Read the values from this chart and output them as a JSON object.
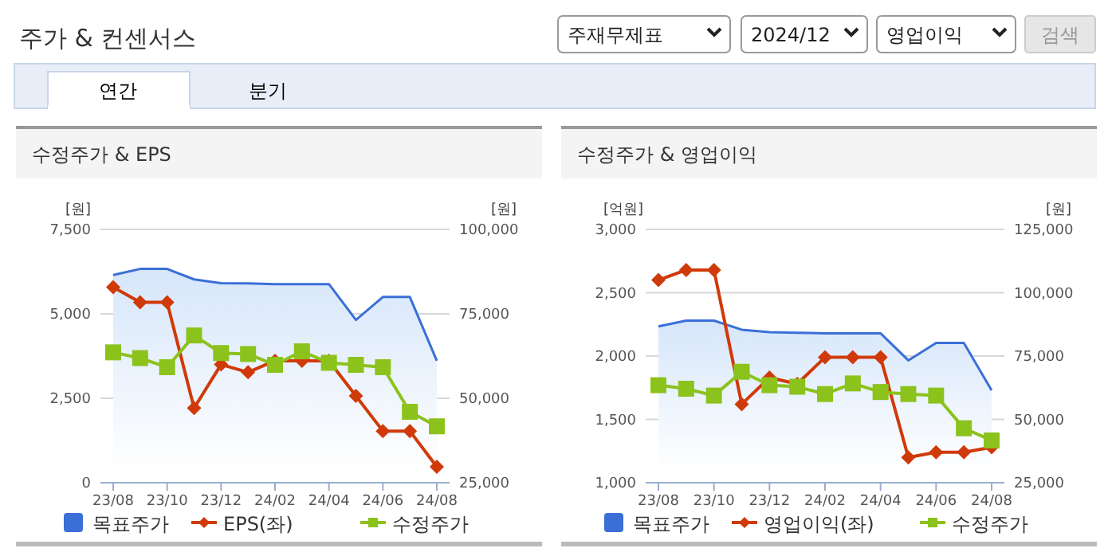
{
  "chart_data": [
    {
      "type": "other",
      "title": "주가 & 컨센서스",
      "annotations": [
        "주재무제표",
        "2024/12",
        "영업이익",
        "검색",
        "연간",
        "분기"
      ]
    },
    {
      "type": "line",
      "title": "수정주가 & EPS",
      "ylabel": "[원]",
      "y2label": "[원]",
      "categories": [
        "23/08",
        null,
        "23/10",
        null,
        "23/12",
        null,
        "24/02",
        null,
        "24/04",
        null,
        "24/06",
        null,
        "24/08"
      ],
      "ylim": [
        0,
        7500
      ],
      "yticks": [
        {
          "value": 0,
          "label": "0"
        },
        {
          "value": 2500,
          "label": "2,500"
        },
        {
          "value": 5000,
          "label": "5,000"
        },
        {
          "value": 7500,
          "label": "7,500"
        }
      ],
      "y2lim": [
        25000,
        100000
      ],
      "y2ticks": [
        {
          "value": 25000,
          "label": "25,000"
        },
        {
          "value": 50000,
          "label": "50,000"
        },
        {
          "value": 75000,
          "label": "75,000"
        },
        {
          "value": 100000,
          "label": "100,000"
        }
      ],
      "grid": "y",
      "legend": "bottom",
      "series": [
        {
          "name": "목표주가",
          "type": "area",
          "axis": "y2",
          "color": "#3a6fd8",
          "marker": "none",
          "values": [
            86500,
            88300,
            88300,
            85200,
            84100,
            84000,
            83800,
            83800,
            83800,
            73200,
            80000,
            80000,
            61100
          ]
        },
        {
          "name": "EPS(좌)",
          "type": "line",
          "color": "#d03a0a",
          "marker": "diamond",
          "values": [
            5790,
            5340,
            5340,
            2210,
            3500,
            3270,
            3610,
            3610,
            3610,
            2570,
            1530,
            1530,
            470
          ]
        },
        {
          "name": "수정주가",
          "type": "line",
          "axis": "y2",
          "color": "#8cc21c",
          "marker": "square",
          "values": [
            63600,
            61900,
            59200,
            68600,
            63400,
            63100,
            59900,
            63900,
            60500,
            59900,
            59200,
            46000,
            41700
          ]
        }
      ]
    },
    {
      "type": "line",
      "title": "수정주가 & 영업이익",
      "ylabel": "[억원]",
      "y2label": "[원]",
      "categories": [
        "23/08",
        null,
        "23/10",
        null,
        "23/12",
        null,
        "24/02",
        null,
        "24/04",
        null,
        "24/06",
        null,
        "24/08"
      ],
      "ylim": [
        1000,
        3000
      ],
      "yticks": [
        {
          "value": 1000,
          "label": "1,000"
        },
        {
          "value": 1500,
          "label": "1,500"
        },
        {
          "value": 2000,
          "label": "2,000"
        },
        {
          "value": 2500,
          "label": "2,500"
        },
        {
          "value": 3000,
          "label": "3,000"
        }
      ],
      "y2lim": [
        25000,
        125000
      ],
      "y2ticks": [
        {
          "value": 25000,
          "label": "25,000"
        },
        {
          "value": 50000,
          "label": "50,000"
        },
        {
          "value": 75000,
          "label": "75,000"
        },
        {
          "value": 100000,
          "label": "100,000"
        },
        {
          "value": 125000,
          "label": "125,000"
        }
      ],
      "grid": "y",
      "legend": "bottom",
      "series": [
        {
          "name": "목표주가",
          "type": "area",
          "axis": "y2",
          "color": "#3a6fd8",
          "marker": "none",
          "values": [
            86700,
            89000,
            89000,
            85400,
            84400,
            84200,
            84000,
            84000,
            84000,
            73300,
            80200,
            80200,
            61500
          ]
        },
        {
          "name": "영업이익(좌)",
          "type": "line",
          "color": "#d03a0a",
          "marker": "diamond",
          "values": [
            2600,
            2680,
            2680,
            1620,
            1830,
            1780,
            1990,
            1990,
            1990,
            1200,
            1240,
            1240,
            1280
          ]
        },
        {
          "name": "수정주가",
          "type": "line",
          "axis": "y2",
          "color": "#8cc21c",
          "marker": "square",
          "values": [
            63500,
            62100,
            59400,
            68800,
            63500,
            62900,
            60000,
            64200,
            60800,
            60000,
            59400,
            46500,
            41700
          ]
        }
      ]
    }
  ]
}
